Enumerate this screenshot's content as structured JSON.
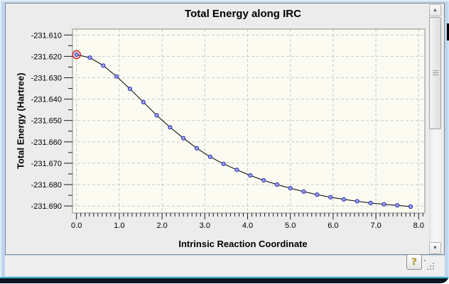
{
  "window": {
    "help_button_label": "?",
    "scrollbar": {
      "up_arrow": "▲",
      "down_arrow": "▼"
    }
  },
  "chart_data": {
    "type": "line",
    "title": "Total Energy along IRC",
    "xlabel": "Intrinsic Reaction Coordinate",
    "ylabel": "Total Energy (Hartree)",
    "x_ticks": [
      "0.0",
      "1.0",
      "2.0",
      "3.0",
      "4.0",
      "5.0",
      "6.0",
      "7.0",
      "8.0"
    ],
    "y_ticks": [
      "-231.610",
      "-231.620",
      "-231.630",
      "-231.640",
      "-231.650",
      "-231.660",
      "-231.670",
      "-231.680",
      "-231.690"
    ],
    "xlim": [
      -0.1,
      8.15
    ],
    "ylim": [
      -231.693,
      -231.607
    ],
    "grid": true,
    "grid_style": "dashed",
    "plot_bg": "#fbfbf1",
    "grid_color": "#c9c9c9",
    "frame_color": "#8b8b8b",
    "series": [
      {
        "name": "Total Energy",
        "line_color": "#000000",
        "marker_fill": "#9aa2ea",
        "marker_edge": "#2a2ab8",
        "x": [
          0.0,
          0.313,
          0.625,
          0.938,
          1.25,
          1.563,
          1.875,
          2.188,
          2.5,
          2.813,
          3.125,
          3.438,
          3.75,
          4.063,
          4.375,
          4.688,
          5.0,
          5.313,
          5.625,
          5.938,
          6.25,
          6.563,
          6.875,
          7.188,
          7.5,
          7.813
        ],
        "y": [
          -231.6192,
          -231.6206,
          -231.6243,
          -231.6294,
          -231.6352,
          -231.6414,
          -231.6476,
          -231.6532,
          -231.6583,
          -231.663,
          -231.667,
          -231.6703,
          -231.6731,
          -231.6757,
          -231.678,
          -231.68,
          -231.6817,
          -231.6833,
          -231.6847,
          -231.6859,
          -231.6869,
          -231.6878,
          -231.6886,
          -231.6892,
          -231.6897,
          -231.6903
        ]
      }
    ],
    "selected_point": {
      "index": 0,
      "ring_color": "#cf2020"
    }
  }
}
